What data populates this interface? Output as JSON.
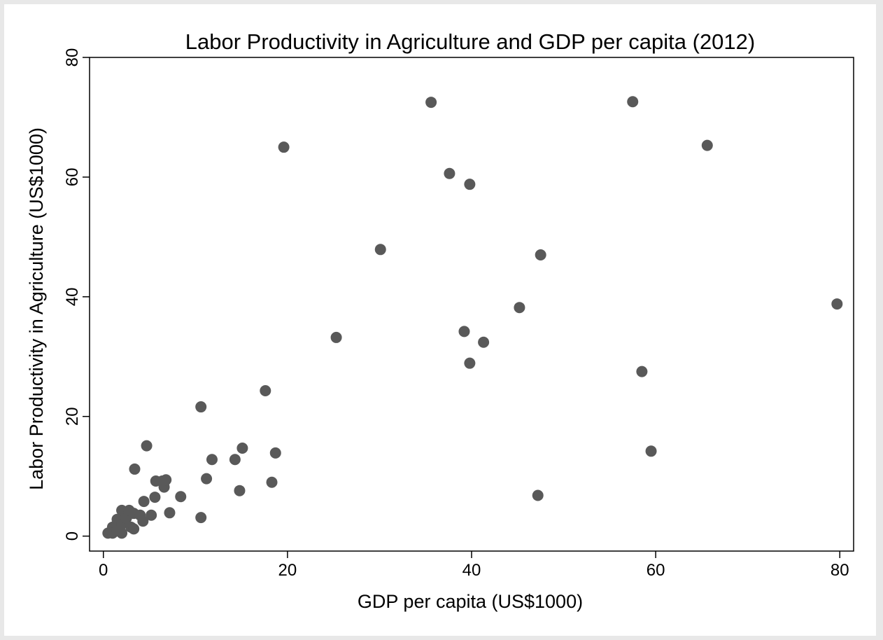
{
  "chart_data": {
    "type": "scatter",
    "title": "Labor Productivity in Agriculture and GDP per capita (2012)",
    "xlabel": "GDP per capita (US$1000)",
    "ylabel": "Labor Productivity in Agriculture (US$1000)",
    "xlim": [
      -1.5,
      81.5
    ],
    "ylim": [
      -2.5,
      80
    ],
    "xticks": [
      0,
      20,
      40,
      60,
      80
    ],
    "yticks": [
      0,
      20,
      40,
      60,
      80
    ],
    "grid": false,
    "marker_color": "#595959",
    "points": [
      {
        "x": 0.5,
        "y": 0.5
      },
      {
        "x": 1.0,
        "y": 1.5
      },
      {
        "x": 1.0,
        "y": 0.5
      },
      {
        "x": 1.5,
        "y": 1.0
      },
      {
        "x": 1.5,
        "y": 2.8
      },
      {
        "x": 2.0,
        "y": 0.5
      },
      {
        "x": 2.0,
        "y": 2.0
      },
      {
        "x": 2.0,
        "y": 4.3
      },
      {
        "x": 2.5,
        "y": 3.0
      },
      {
        "x": 2.8,
        "y": 4.3
      },
      {
        "x": 3.0,
        "y": 1.5
      },
      {
        "x": 3.3,
        "y": 3.8
      },
      {
        "x": 3.3,
        "y": 1.2
      },
      {
        "x": 3.4,
        "y": 11.2
      },
      {
        "x": 4.0,
        "y": 3.5
      },
      {
        "x": 4.3,
        "y": 2.5
      },
      {
        "x": 4.4,
        "y": 5.8
      },
      {
        "x": 4.7,
        "y": 15.1
      },
      {
        "x": 5.2,
        "y": 3.5
      },
      {
        "x": 5.6,
        "y": 6.5
      },
      {
        "x": 5.7,
        "y": 9.2
      },
      {
        "x": 6.4,
        "y": 9.2
      },
      {
        "x": 6.6,
        "y": 8.2
      },
      {
        "x": 6.8,
        "y": 9.4
      },
      {
        "x": 7.2,
        "y": 3.9
      },
      {
        "x": 8.4,
        "y": 6.6
      },
      {
        "x": 10.6,
        "y": 21.6
      },
      {
        "x": 10.6,
        "y": 3.1
      },
      {
        "x": 11.2,
        "y": 9.6
      },
      {
        "x": 11.8,
        "y": 12.8
      },
      {
        "x": 14.3,
        "y": 12.8
      },
      {
        "x": 14.8,
        "y": 7.6
      },
      {
        "x": 15.1,
        "y": 14.7
      },
      {
        "x": 17.6,
        "y": 24.3
      },
      {
        "x": 18.3,
        "y": 9.0
      },
      {
        "x": 18.7,
        "y": 13.9
      },
      {
        "x": 19.6,
        "y": 65.0
      },
      {
        "x": 25.3,
        "y": 33.2
      },
      {
        "x": 30.1,
        "y": 47.9
      },
      {
        "x": 35.6,
        "y": 72.5
      },
      {
        "x": 37.6,
        "y": 60.6
      },
      {
        "x": 39.2,
        "y": 34.2
      },
      {
        "x": 39.8,
        "y": 58.8
      },
      {
        "x": 39.8,
        "y": 28.9
      },
      {
        "x": 41.3,
        "y": 32.4
      },
      {
        "x": 45.2,
        "y": 38.2
      },
      {
        "x": 47.2,
        "y": 6.8
      },
      {
        "x": 47.5,
        "y": 47.0
      },
      {
        "x": 57.5,
        "y": 72.6
      },
      {
        "x": 58.5,
        "y": 27.5
      },
      {
        "x": 59.5,
        "y": 14.2
      },
      {
        "x": 65.6,
        "y": 65.3
      },
      {
        "x": 79.7,
        "y": 38.8
      }
    ]
  }
}
